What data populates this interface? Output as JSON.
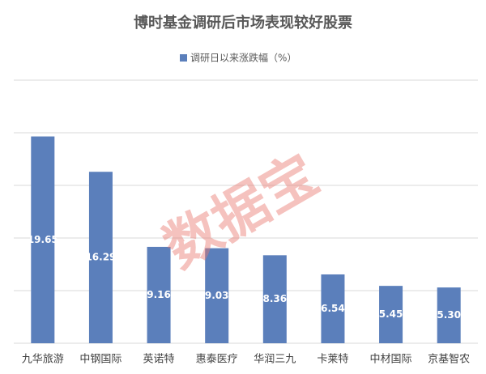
{
  "chart_data": {
    "type": "bar",
    "title": "博时基金调研后市场表现较好股票",
    "categories": [
      "九华旅游",
      "中钢国际",
      "英诺特",
      "惠泰医疗",
      "华润三九",
      "卡莱特",
      "中材国际",
      "京基智农"
    ],
    "series": [
      {
        "name": "调研日以来涨跌幅（%）",
        "color": "#5b7fbb",
        "values": [
          19.65,
          16.29,
          9.16,
          9.03,
          8.36,
          6.54,
          5.45,
          5.3
        ],
        "value_labels": [
          "19.65",
          "16.29",
          "9.16",
          "9.03",
          "8.36",
          "6.54",
          "5.45",
          "5.30"
        ]
      }
    ],
    "ylim": [
      0,
      25
    ],
    "yticks": [
      0,
      5,
      10,
      15,
      20,
      25
    ],
    "grid": true,
    "watermark": "数据宝"
  }
}
